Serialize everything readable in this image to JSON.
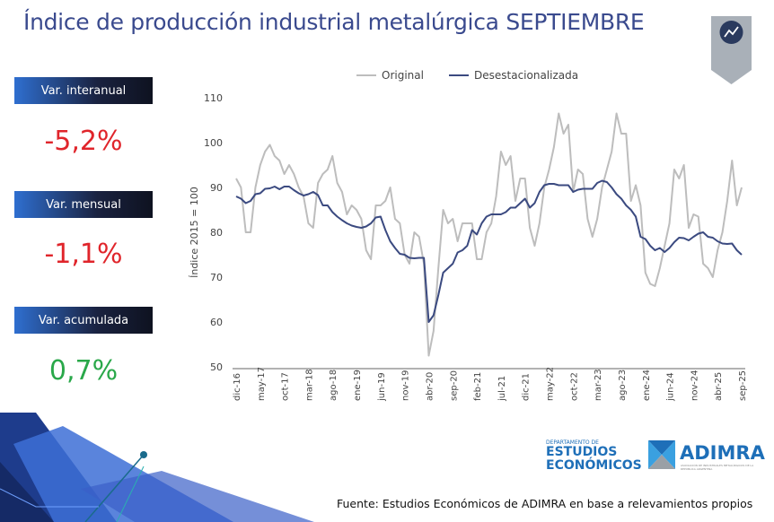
{
  "title": "Índice de producción industrial metalúrgica SEPTIEMBRE",
  "kpis": [
    {
      "label": "Var. interanual",
      "value": "-5,2%",
      "color": "#e0252b"
    },
    {
      "label": "Var. mensual",
      "value": "-1,1%",
      "color": "#e0252b"
    },
    {
      "label": "Var. acumulada",
      "value": "0,7%",
      "color": "#2aa84a"
    }
  ],
  "source": "Fuente: Estudios Económicos de ADIMRA en base a relevamientos propios",
  "logos": {
    "dept_small": "DEPARTAMENTO DE",
    "dept_line1": "ESTUDIOS",
    "dept_line2": "ECONÓMICOS",
    "adimra": "ADIMRA",
    "adimra_sub": "ASOCIACIÓN DE INDUSTRIALES METALÚRGICOS DE LA REPÚBLICA ARGENTINA"
  },
  "badge_icon": "line-chart-icon",
  "chart_data": {
    "type": "line",
    "title": "",
    "xlabel": "",
    "ylabel": "Índice 2015 = 100",
    "ylim": [
      50,
      110
    ],
    "yticks": [
      50,
      60,
      70,
      80,
      90,
      100,
      110
    ],
    "grid": false,
    "legend": "top",
    "start": "dic-16",
    "xticklabels": [
      "dic-16",
      "may-17",
      "oct-17",
      "mar-18",
      "ago-18",
      "ene-19",
      "jun-19",
      "nov-19",
      "abr-20",
      "sep-20",
      "feb-21",
      "jul-21",
      "dic-21",
      "may-22",
      "oct-22",
      "mar-23",
      "ago-23",
      "ene-24",
      "jun-24",
      "nov-24",
      "abr-25",
      "sep-25"
    ],
    "series": [
      {
        "name": "Original",
        "color": "#bdbdbd",
        "values": [
          92,
          90,
          80,
          80,
          90,
          95,
          98,
          99.5,
          97,
          96,
          93,
          95,
          93,
          90,
          88,
          82,
          81,
          91,
          93,
          94,
          97,
          91,
          89,
          84,
          86,
          85,
          83,
          76,
          74,
          86,
          86,
          87,
          90,
          83,
          82,
          75,
          73,
          80,
          79,
          73,
          52.5,
          58,
          72,
          85,
          82,
          83,
          78,
          82,
          82,
          82,
          74,
          74,
          80,
          82,
          88,
          98,
          95,
          97,
          87,
          92,
          92,
          81,
          77,
          82,
          90,
          94,
          99,
          106.5,
          102,
          104,
          89,
          94,
          93,
          83,
          79,
          83,
          90,
          94,
          98,
          106.5,
          102,
          102,
          87,
          90.5,
          86,
          71,
          68.5,
          68,
          72,
          77,
          82,
          94,
          92,
          95,
          81,
          84,
          83.5,
          73,
          72,
          70,
          76,
          80,
          87,
          96,
          86,
          90
        ]
      },
      {
        "name": "Desestacionalizada",
        "color": "#3b4a80",
        "values": [
          88,
          87.5,
          86.5,
          87,
          88.5,
          88.7,
          89.7,
          89.8,
          90.2,
          89.6,
          90.2,
          90.2,
          89.4,
          88.7,
          88.2,
          88.5,
          89,
          88.3,
          86,
          86,
          84.5,
          83.5,
          82.7,
          82,
          81.5,
          81.2,
          81,
          81.3,
          82,
          83.3,
          83.5,
          80.5,
          78,
          76.5,
          75.2,
          75,
          74.3,
          74.2,
          74.3,
          74.3,
          60,
          61.5,
          66,
          71,
          72,
          73,
          75.5,
          76,
          77,
          80.5,
          79.5,
          82,
          83.5,
          84,
          84,
          84,
          84.5,
          85.5,
          85.5,
          86.5,
          87.5,
          85.5,
          86.5,
          89,
          90.5,
          90.8,
          90.8,
          90.5,
          90.5,
          90.5,
          89,
          89.5,
          89.7,
          89.7,
          89.7,
          91,
          91.5,
          91.2,
          90,
          88.5,
          87.5,
          86,
          85,
          83.5,
          79,
          78.5,
          77,
          76,
          76.5,
          75.6,
          76.5,
          77.8,
          78.8,
          78.7,
          78.2,
          79,
          79.7,
          80,
          79,
          78.8,
          78,
          77.5,
          77.4,
          77.5,
          76,
          75
        ]
      }
    ]
  }
}
